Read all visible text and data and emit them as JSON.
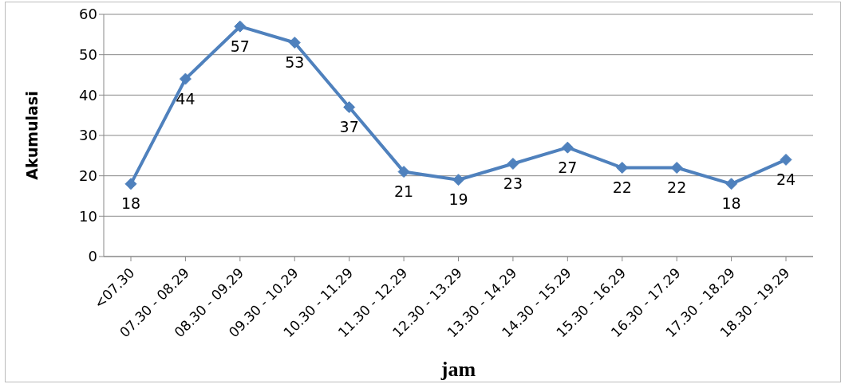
{
  "chart_data": {
    "type": "line",
    "xlabel": "jam",
    "ylabel": "Akumulasi",
    "categories": [
      "<07.30",
      "07.30 - 08.29",
      "08.30 - 09.29",
      "09.30 - 10.29",
      "10.30 - 11.29",
      "11.30 - 12.29",
      "12.30 - 13.29",
      "13.30 - 14.29",
      "14.30 - 15.29",
      "15.30 - 16.29",
      "16.30 - 17.29",
      "17.30 - 18.29",
      "18.30 - 19.29"
    ],
    "series": [
      {
        "color": "#4f81bd",
        "values": [
          18,
          44,
          57,
          53,
          37,
          21,
          19,
          23,
          27,
          22,
          22,
          18,
          24
        ]
      }
    ],
    "ylim": [
      0,
      60
    ],
    "yticks": [
      0,
      10,
      20,
      30,
      40,
      50,
      60
    ],
    "grid": "y",
    "legend": false,
    "marker": "diamond",
    "line_style": "solid",
    "data_labels": true
  }
}
